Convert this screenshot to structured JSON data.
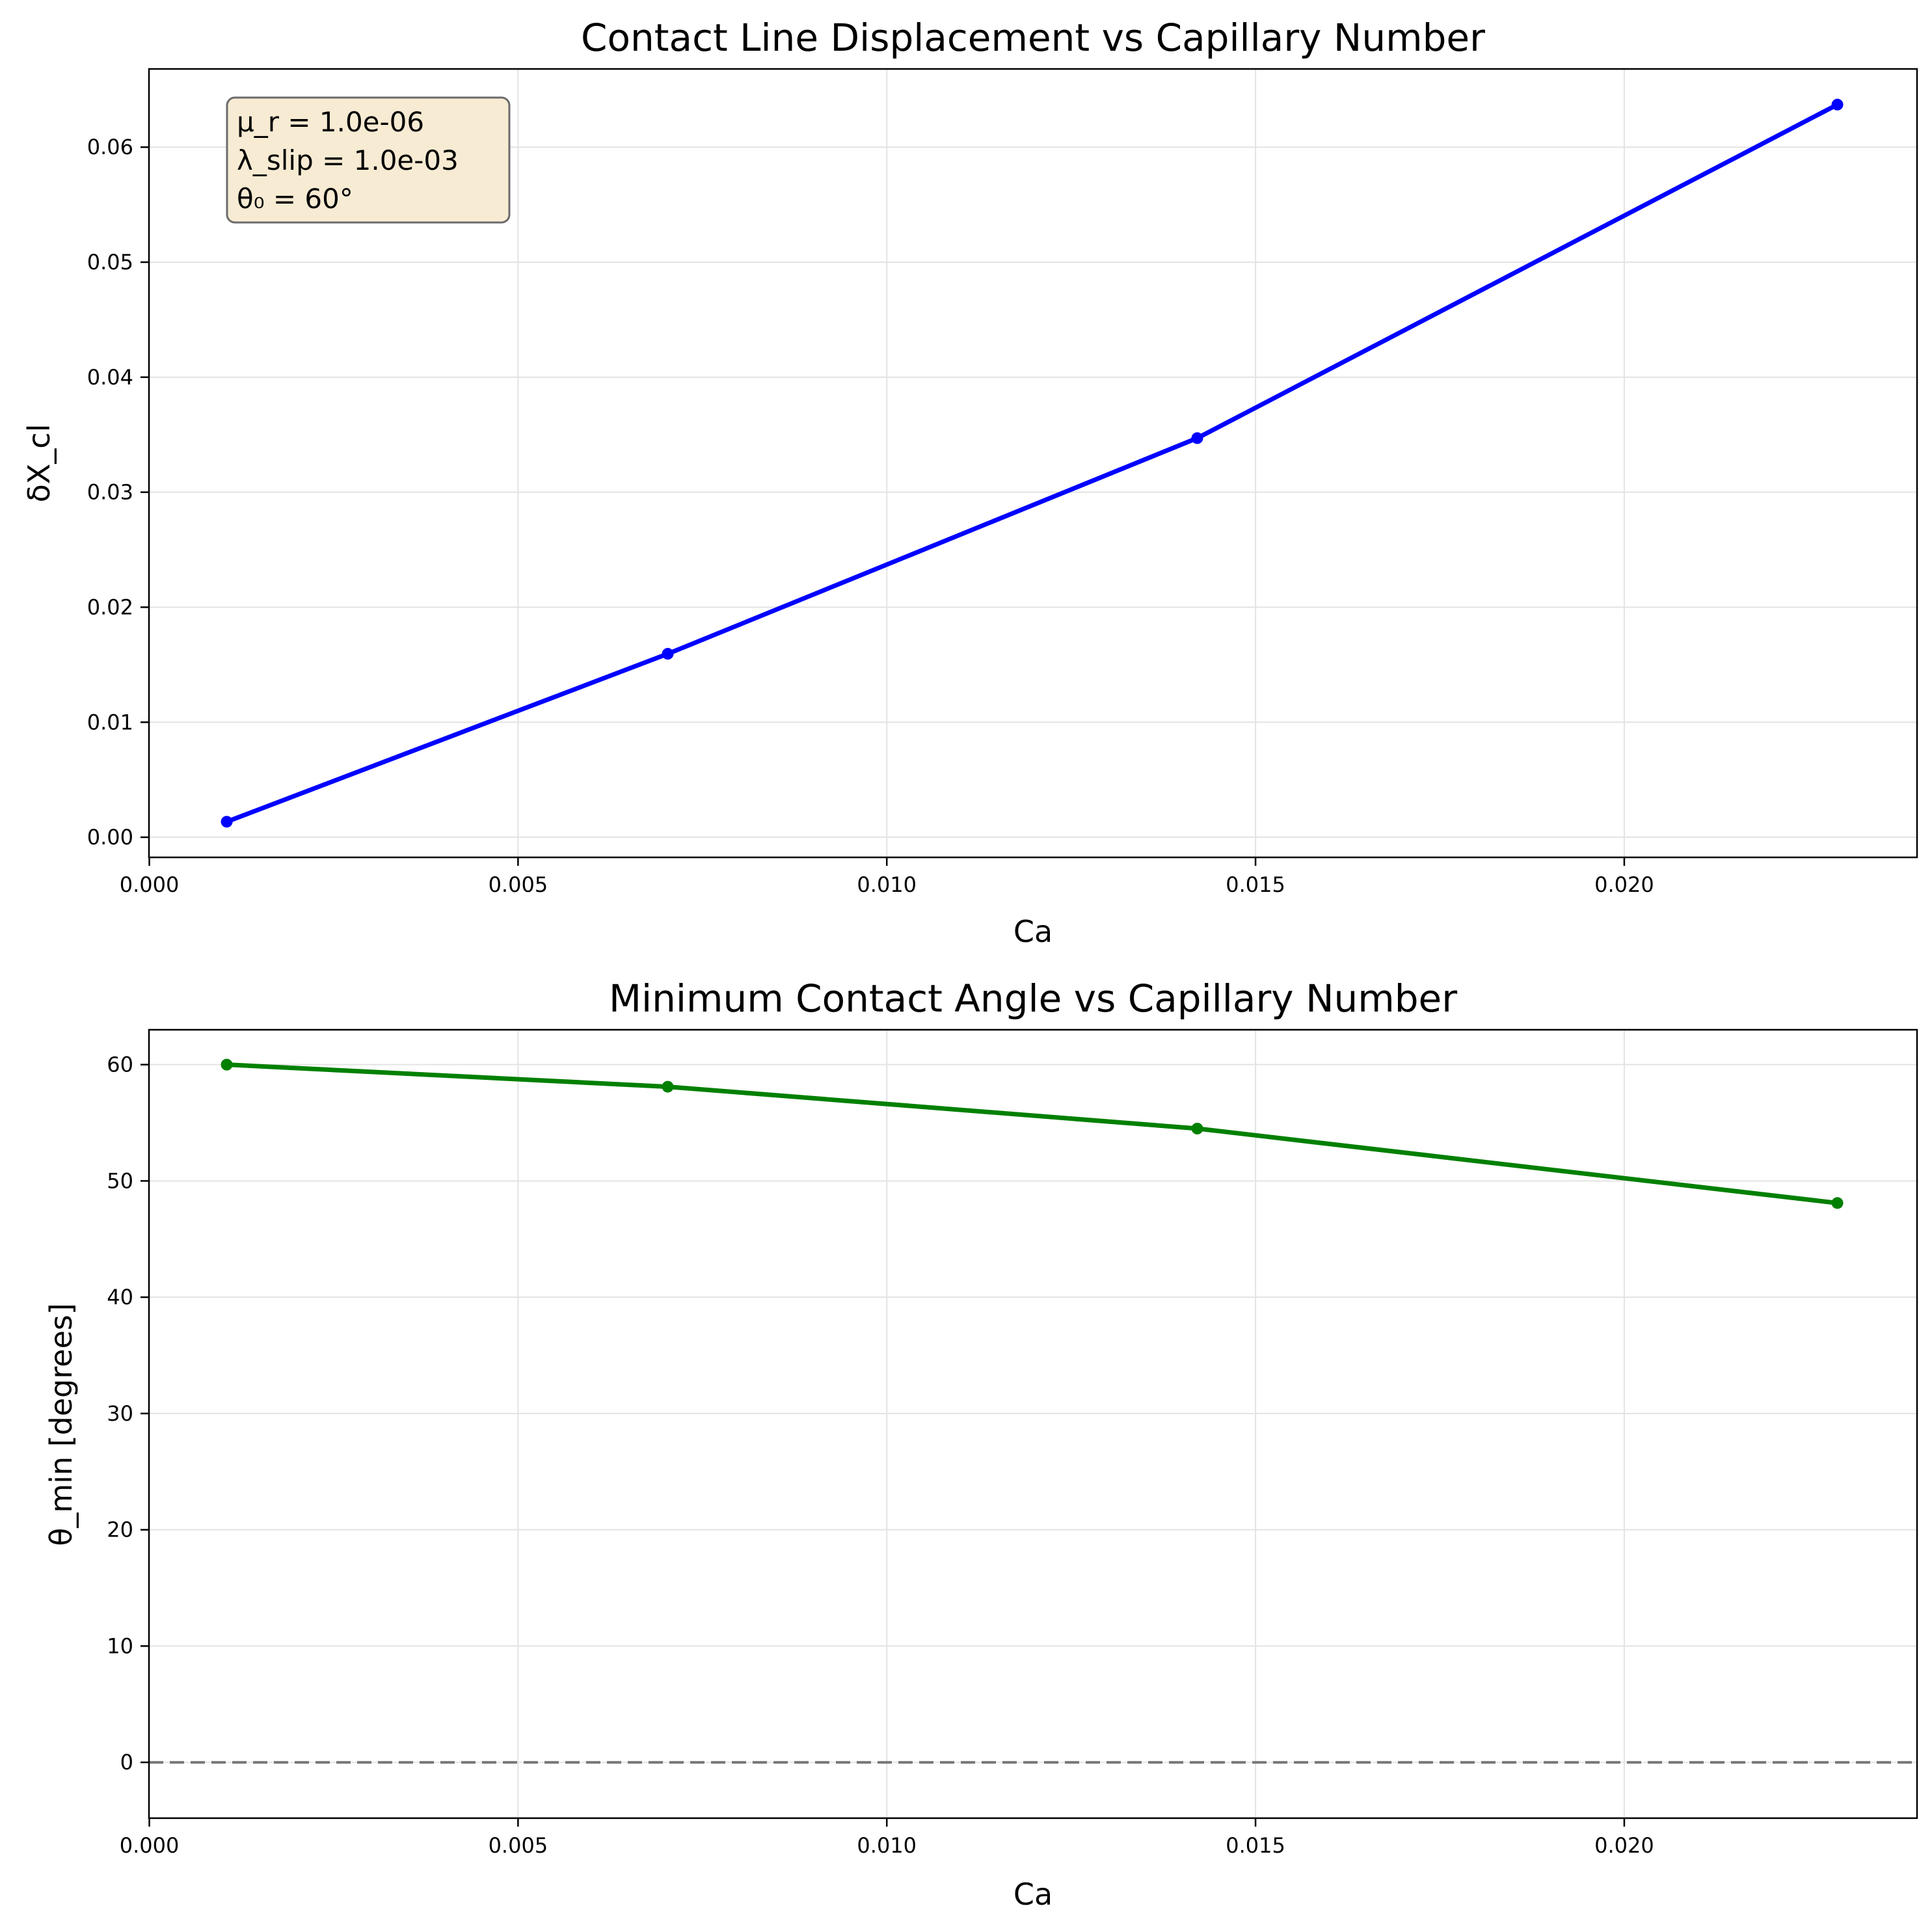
{
  "chart_data": [
    {
      "type": "line",
      "title": "Contact Line Displacement vs Capillary Number",
      "xlabel": "Ca",
      "ylabel": "δX_cl",
      "xlim": [
        -4.7e-06,
        0.02397
      ],
      "ylim": [
        -0.00175,
        0.0668
      ],
      "xticks": [
        0.0,
        0.005,
        0.01,
        0.015,
        0.02
      ],
      "xtick_labels": [
        "0.000",
        "0.005",
        "0.010",
        "0.015",
        "0.020"
      ],
      "yticks": [
        0.0,
        0.01,
        0.02,
        0.03,
        0.04,
        0.05,
        0.06
      ],
      "ytick_labels": [
        "0.00",
        "0.01",
        "0.02",
        "0.03",
        "0.04",
        "0.05",
        "0.06"
      ],
      "grid": true,
      "series": [
        {
          "color": "#0000ff",
          "marker": "circle",
          "x": [
            0.00105,
            0.00703,
            0.01421,
            0.02289
          ],
          "y": [
            0.00135,
            0.01595,
            0.0347,
            0.0637
          ]
        }
      ],
      "annotation": {
        "lines": [
          "μ_r = 1.0e-06",
          "λ_slip = 1.0e-03",
          "θ₀ = 60°"
        ],
        "background": "#f7ebd3",
        "placement": "upper-left"
      }
    },
    {
      "type": "line",
      "title": "Minimum Contact Angle vs Capillary Number",
      "xlabel": "Ca",
      "ylabel": "θ_min [degrees]",
      "xlim": [
        -4.7e-06,
        0.02397
      ],
      "ylim": [
        -4.8,
        63
      ],
      "xticks": [
        0.0,
        0.005,
        0.01,
        0.015,
        0.02
      ],
      "xtick_labels": [
        "0.000",
        "0.005",
        "0.010",
        "0.015",
        "0.020"
      ],
      "yticks": [
        0,
        10,
        20,
        30,
        40,
        50,
        60
      ],
      "ytick_labels": [
        "0",
        "10",
        "20",
        "30",
        "40",
        "50",
        "60"
      ],
      "grid": true,
      "series": [
        {
          "color": "#008000",
          "marker": "circle",
          "x": [
            0.00105,
            0.00703,
            0.01421,
            0.02289
          ],
          "y": [
            60.0,
            58.1,
            54.5,
            48.1
          ]
        }
      ],
      "reference_line": {
        "y": 0,
        "style": "dashed",
        "color": "#777777"
      }
    }
  ]
}
